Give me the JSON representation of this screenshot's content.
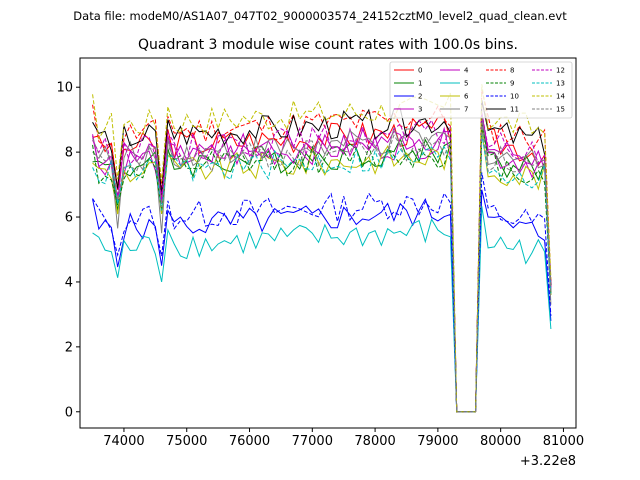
{
  "chart_data": {
    "type": "line",
    "suptitle": "Data file: modeM0/AS1A07_047T02_9000003574_24152cztM0_level2_quad_clean.evt",
    "title": "Quadrant 3 module wise count rates with 100.0s bins.",
    "xlabel": "",
    "ylabel": "",
    "x_offset_label": "+3.22e8",
    "xlim": [
      73300,
      81200
    ],
    "ylim": [
      -0.5,
      10.9
    ],
    "xticks": [
      74000,
      75000,
      76000,
      77000,
      78000,
      79000,
      80000,
      81000
    ],
    "xtick_labels": [
      "74000",
      "75000",
      "76000",
      "77000",
      "78000",
      "79000",
      "80000",
      "81000"
    ],
    "yticks": [
      0,
      2,
      4,
      6,
      8,
      10
    ],
    "ytick_labels": [
      "0",
      "2",
      "4",
      "6",
      "8",
      "10"
    ],
    "x_start": 73500,
    "x_step": 100,
    "legend_position": "top-right",
    "series": [
      {
        "name": "0",
        "color": "#ff0000",
        "dash": "solid",
        "base": 8.1,
        "lo": 6.7
      },
      {
        "name": "1",
        "color": "#008000",
        "dash": "solid",
        "base": 7.5,
        "lo": 6.2
      },
      {
        "name": "2",
        "color": "#0000ff",
        "dash": "solid",
        "base": 5.6,
        "lo": 4.6
      },
      {
        "name": "3",
        "color": "#bf00bf",
        "dash": "solid",
        "base": 7.7,
        "lo": 6.5
      },
      {
        "name": "4",
        "color": "#bf00bf",
        "dash": "solid",
        "base": 7.9,
        "lo": 6.6
      },
      {
        "name": "5",
        "color": "#00bfbf",
        "dash": "solid",
        "base": 5.0,
        "lo": 4.1
      },
      {
        "name": "6",
        "color": "#bfbf00",
        "dash": "solid",
        "base": 7.3,
        "lo": 6.2
      },
      {
        "name": "7",
        "color": "#808080",
        "dash": "solid",
        "base": 7.8,
        "lo": 5.6
      },
      {
        "name": "8",
        "color": "#ff0000",
        "dash": "dashed",
        "base": 8.5,
        "lo": 7.0
      },
      {
        "name": "9",
        "color": "#008000",
        "dash": "dashed",
        "base": 7.4,
        "lo": 6.3
      },
      {
        "name": "10",
        "color": "#0000ff",
        "dash": "dashed",
        "base": 5.9,
        "lo": 4.9
      },
      {
        "name": "11",
        "color": "#000000",
        "dash": "solid",
        "base": 8.4,
        "lo": 6.8
      },
      {
        "name": "12",
        "color": "#bf00bf",
        "dash": "dashed",
        "base": 8.0,
        "lo": 6.7
      },
      {
        "name": "13",
        "color": "#00bfbf",
        "dash": "dashed",
        "base": 7.3,
        "lo": 6.3
      },
      {
        "name": "14",
        "color": "#bfbf00",
        "dash": "dashed",
        "base": 8.8,
        "lo": 7.2
      },
      {
        "name": "15",
        "color": "#808080",
        "dash": "dashed",
        "base": 7.6,
        "lo": 6.4
      }
    ]
  }
}
